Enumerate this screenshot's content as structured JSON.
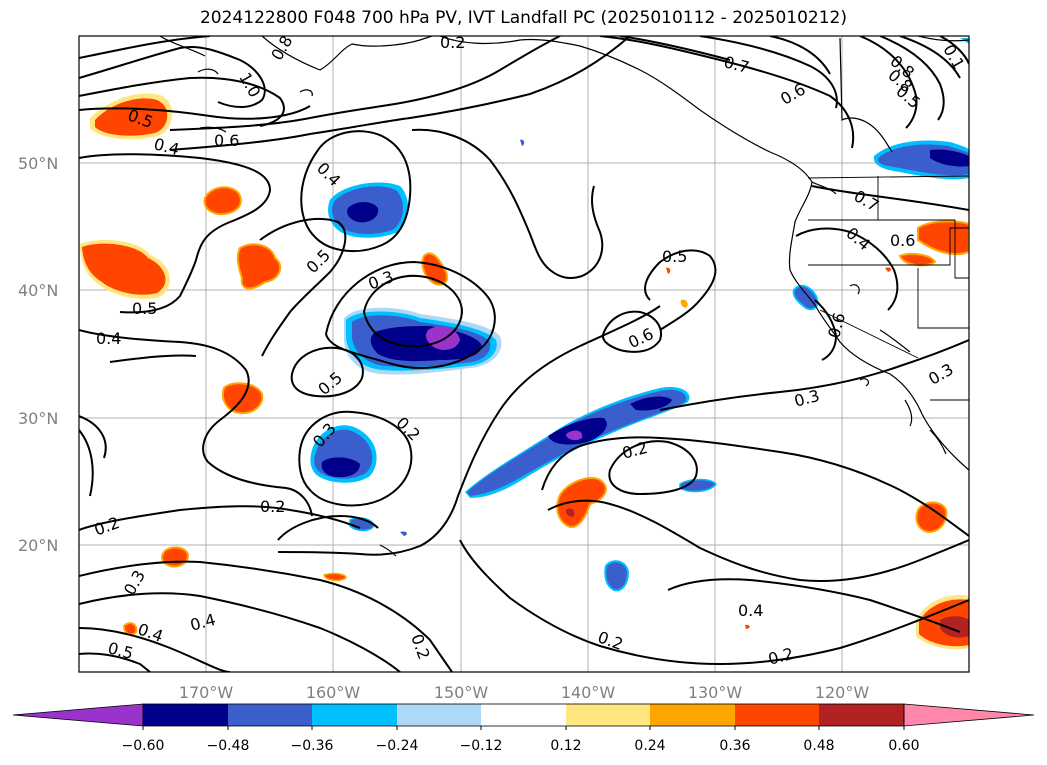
{
  "title": "2024122800 F048 700 hPa PV, IVT Landfall PC (2025010112 - 2025010212)",
  "lat_labels": [
    "50°N",
    "40°N",
    "30°N",
    "20°N"
  ],
  "lon_labels": [
    "170°W",
    "160°W",
    "150°W",
    "140°W",
    "130°W",
    "120°W"
  ],
  "colorbar": {
    "ticks": [
      "−0.60",
      "−0.48",
      "−0.36",
      "−0.24",
      "−0.12",
      "0.12",
      "0.24",
      "0.36",
      "0.48",
      "0.60"
    ],
    "colors": [
      "#9933cc",
      "#00008b",
      "#3a5fcd",
      "#00bfff",
      "#add8f7",
      "#ffffff",
      "#ffe680",
      "#ffa500",
      "#ff4500",
      "#b22222",
      "#ff88aa"
    ]
  },
  "contour_labels": [
    "0.8",
    "1.0",
    "0.5",
    "0.4",
    "0.6",
    "0.4",
    "0.5",
    "0.3",
    "0.5",
    "0.4",
    "0.5",
    "0.3",
    "0.2",
    "0.2",
    "0.2",
    "0.3",
    "0.4",
    "0.4",
    "0.5",
    "0.2",
    "0.2",
    "0.6",
    "0.5",
    "0.7",
    "0.6",
    "0.7",
    "0.4",
    "0.6",
    "0.8",
    "0.6",
    "0.3",
    "0.3",
    "0.2",
    "0.4",
    "0.2",
    "0.2",
    "0.1",
    "0.8",
    "0.5"
  ]
}
